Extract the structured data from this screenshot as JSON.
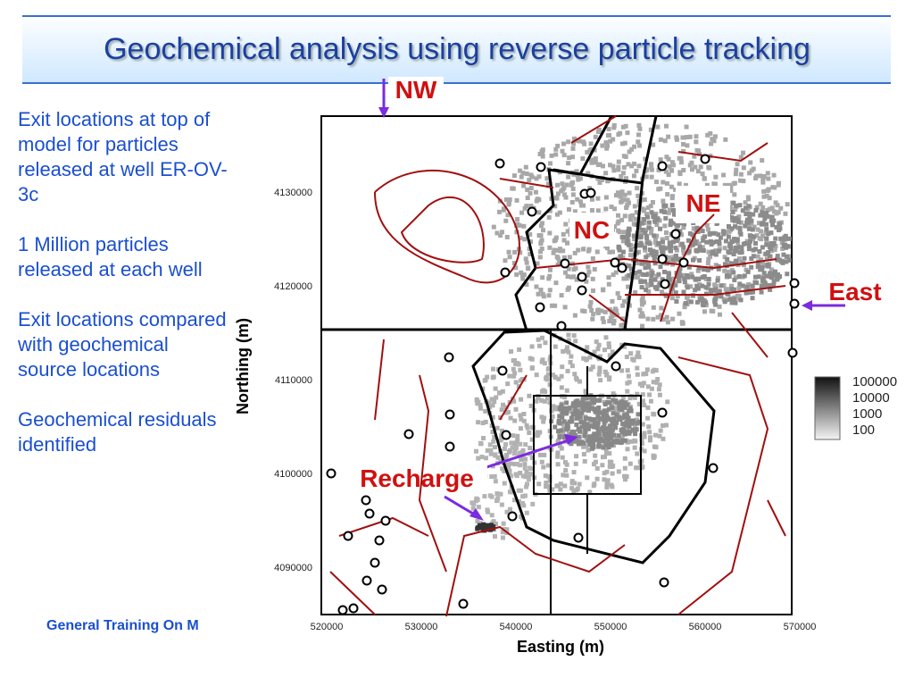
{
  "header": {
    "title": "Geochemical analysis using reverse particle tracking"
  },
  "bullets": [
    "Exit locations at top of model for particles released at well ER-OV-3c",
    "1 Million particles released at each well",
    "Exit locations compared with geochemical source locations",
    "Geochemical residuals identified"
  ],
  "footer": "General Training On M",
  "map": {
    "labels": {
      "nw": "NW",
      "nc": "NC",
      "ne": "NE",
      "east": "East",
      "recharge": "Recharge"
    },
    "x_axis": {
      "title": "Easting (m)",
      "ticks": [
        "520000",
        "530000",
        "540000",
        "550000",
        "560000",
        "570000"
      ]
    },
    "y_axis": {
      "title": "Northing (m)",
      "ticks": [
        "4130000",
        "4120000",
        "4110000",
        "4100000",
        "4090000"
      ]
    },
    "legend": [
      "100000",
      "10000",
      "1000",
      "100"
    ]
  }
}
